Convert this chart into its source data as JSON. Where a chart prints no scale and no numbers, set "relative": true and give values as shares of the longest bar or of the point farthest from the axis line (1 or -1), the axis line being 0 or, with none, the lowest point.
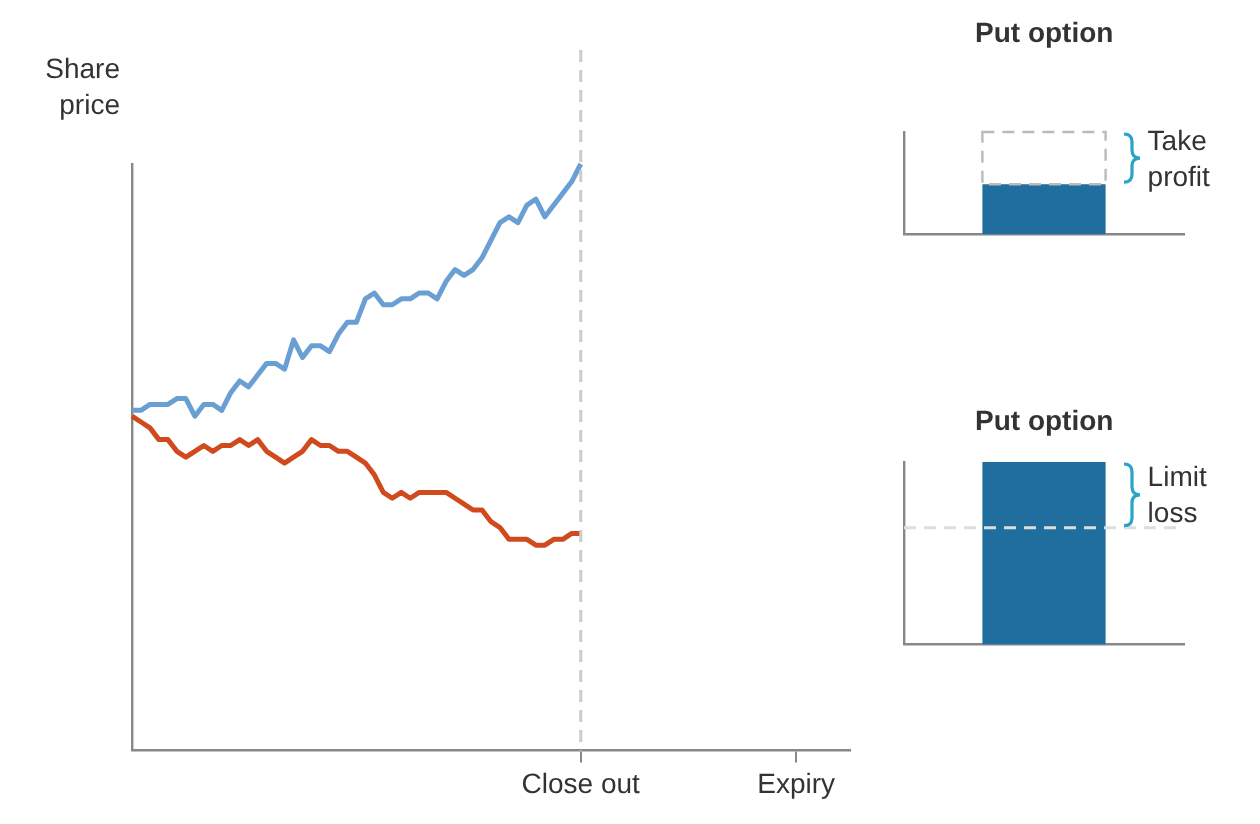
{
  "chart_data": [
    {
      "type": "line",
      "ylabel": "Share price",
      "relative": true,
      "grid": false,
      "legend": false,
      "categories": [
        null,
        null,
        null,
        null,
        null,
        null,
        null,
        null,
        null,
        null,
        null,
        null,
        null,
        null,
        null,
        null,
        null,
        null,
        null,
        null,
        null,
        null,
        null,
        null,
        null,
        null,
        null,
        null,
        null,
        null,
        null,
        null,
        null,
        null,
        null,
        null,
        null,
        null,
        null,
        null,
        null,
        null,
        null,
        null,
        null,
        null,
        null,
        null,
        null,
        null,
        "Close out",
        null,
        null,
        null,
        null,
        null,
        null,
        null,
        null,
        null,
        null,
        null,
        null,
        null,
        null,
        null,
        null,
        null,
        null,
        null,
        null,
        null,
        null,
        null,
        "Expiry",
        null,
        null,
        null,
        null,
        null,
        null
      ],
      "ref_lines": [
        {
          "axis": "x",
          "value": "Close out",
          "label": null,
          "color": "#cccccc",
          "line_style": "dashed"
        }
      ],
      "series": [
        {
          "color": "#6a9fd4",
          "values": [
            0.58,
            0.58,
            0.59,
            0.59,
            0.59,
            0.6,
            0.6,
            0.57,
            0.59,
            0.59,
            0.58,
            0.61,
            0.63,
            0.62,
            0.64,
            0.66,
            0.66,
            0.65,
            0.7,
            0.67,
            0.69,
            0.69,
            0.68,
            0.71,
            0.73,
            0.73,
            0.77,
            0.78,
            0.76,
            0.76,
            0.77,
            0.77,
            0.78,
            0.78,
            0.77,
            0.8,
            0.82,
            0.81,
            0.82,
            0.84,
            0.87,
            0.9,
            0.91,
            0.9,
            0.93,
            0.94,
            0.91,
            0.93,
            0.95,
            0.97,
            1,
            null,
            null,
            null,
            null,
            null,
            null,
            null,
            null,
            null,
            null,
            null,
            null,
            null,
            null,
            null,
            null,
            null,
            null,
            null,
            null,
            null,
            null,
            null,
            null,
            null,
            null,
            null,
            null,
            null,
            null
          ]
        },
        {
          "color": "#d04a1e",
          "values": [
            0.57,
            0.56,
            0.55,
            0.53,
            0.53,
            0.51,
            0.5,
            0.51,
            0.52,
            0.51,
            0.52,
            0.52,
            0.53,
            0.52,
            0.53,
            0.51,
            0.5,
            0.49,
            0.5,
            0.51,
            0.53,
            0.52,
            0.52,
            0.51,
            0.51,
            0.5,
            0.49,
            0.47,
            0.44,
            0.43,
            0.44,
            0.43,
            0.44,
            0.44,
            0.44,
            0.44,
            0.43,
            0.42,
            0.41,
            0.41,
            0.39,
            0.38,
            0.36,
            0.36,
            0.36,
            0.35,
            0.35,
            0.36,
            0.36,
            0.37,
            0.37,
            null,
            null,
            null,
            null,
            null,
            null,
            null,
            null,
            null,
            null,
            null,
            null,
            null,
            null,
            null,
            null,
            null,
            null,
            null,
            null,
            null,
            null,
            null,
            null,
            null,
            null,
            null,
            null,
            null,
            null
          ]
        }
      ]
    },
    {
      "type": "bar",
      "title": "Put option",
      "relative": true,
      "stacked": true,
      "categories": [
        null
      ],
      "grid": false,
      "legend": false,
      "annotations": [
        "Take profit"
      ],
      "series": [
        {
          "color": "#1f6e9e",
          "values": [
            0.49
          ]
        },
        {
          "color": "#bbbbbb",
          "line_style": "dashed",
          "values": [
            0.51
          ]
        }
      ]
    },
    {
      "type": "bar",
      "title": "Put option",
      "relative": true,
      "categories": [
        null
      ],
      "grid": false,
      "legend": false,
      "annotations": [
        "Limit loss"
      ],
      "ref_lines": [
        {
          "axis": "y",
          "value": 0.64,
          "label": null,
          "color": "#dddddd",
          "line_style": "dashed"
        }
      ],
      "series": [
        {
          "color": "#1f6e9e",
          "values": [
            1
          ]
        }
      ]
    }
  ]
}
